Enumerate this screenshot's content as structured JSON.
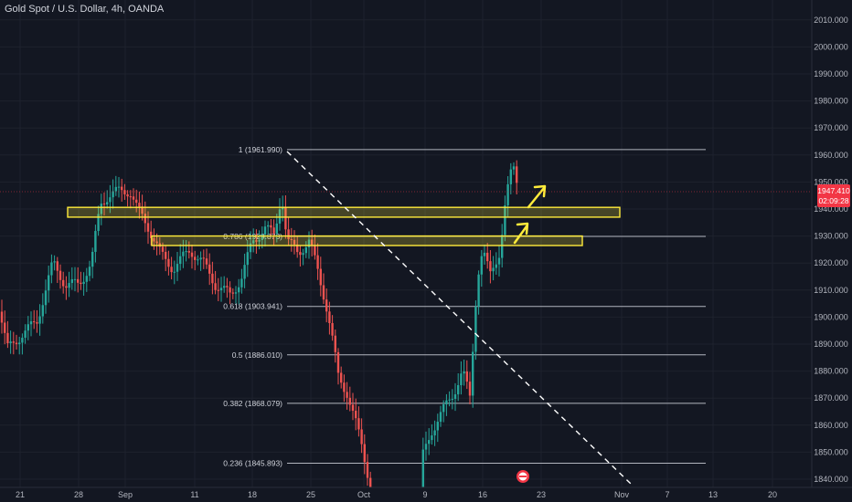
{
  "header": {
    "title": "Gold Spot / U.S. Dollar, 4h, OANDA"
  },
  "price_axis": {
    "ticks": [
      "2010.000",
      "2000.000",
      "1990.000",
      "1980.000",
      "1970.000",
      "1960.000",
      "1950.000",
      "1940.000",
      "1930.000",
      "1920.000",
      "1910.000",
      "1900.000",
      "1890.000",
      "1880.000",
      "1870.000",
      "1860.000",
      "1850.000",
      "1840.000"
    ],
    "current_price": "1947.410",
    "countdown": "02:09:28",
    "price_badge_color": "#f23645"
  },
  "time_axis": {
    "ticks": [
      "21",
      "28",
      "Sep",
      "11",
      "18",
      "25",
      "Oct",
      "9",
      "16",
      "23",
      "Nov",
      "7",
      "13",
      "20"
    ]
  },
  "fibonacci": [
    {
      "label": "1 (1961.990)",
      "price": 1961.99
    },
    {
      "label": "0.786 (1929.873)",
      "price": 1929.873
    },
    {
      "label": "0.618 (1903.941)",
      "price": 1903.941
    },
    {
      "label": "0.5 (1886.010)",
      "price": 1886.01
    },
    {
      "label": "0.382 (1868.079)",
      "price": 1868.079
    },
    {
      "label": "0.236 (1845.893)",
      "price": 1845.893
    }
  ],
  "zones": [
    {
      "name": "upper-zone",
      "low": 1938,
      "high": 1939.6
    },
    {
      "name": "lower-zone",
      "low": 1927.5,
      "high": 1929
    }
  ],
  "colors": {
    "background": "#131722",
    "up": "#26a69a",
    "down": "#ef5350",
    "zone": "#ffeb3b",
    "fib": "#b2b5be"
  },
  "icons": [
    "arrow-up-icon",
    "arrow-up-icon",
    "event-flag-icon"
  ]
}
